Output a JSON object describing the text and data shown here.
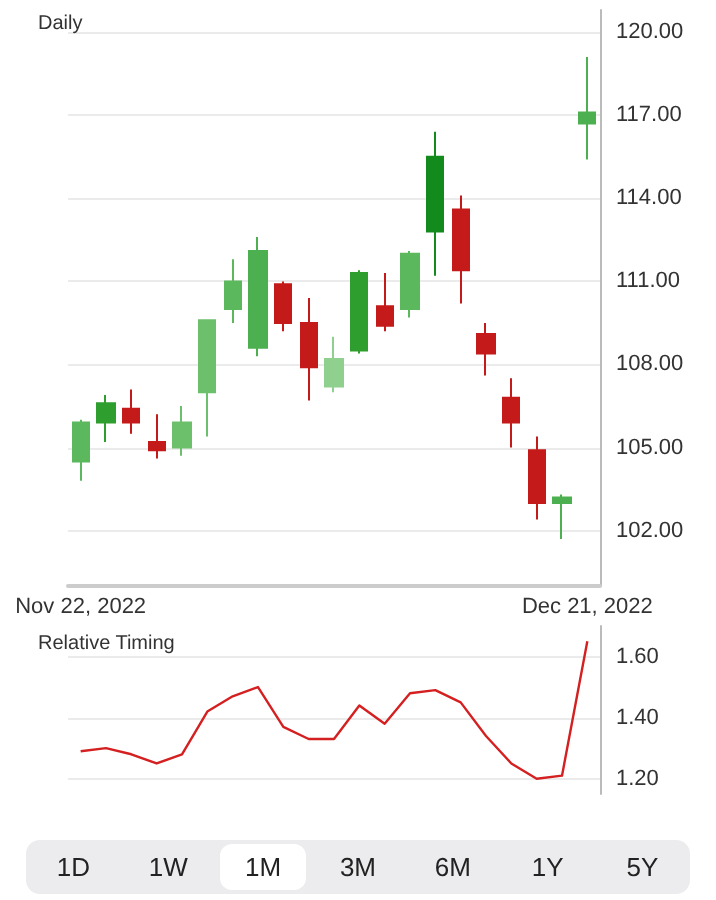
{
  "chart_data": [
    {
      "type": "candlestick",
      "title": "Daily",
      "categories": [
        "Nov 22, 2022",
        null,
        null,
        null,
        null,
        null,
        null,
        null,
        null,
        null,
        null,
        null,
        null,
        null,
        null,
        null,
        null,
        null,
        null,
        null,
        "Dec 21, 2022"
      ],
      "ohlc": [
        [
          104.5,
          106.0,
          103.8,
          105.9
        ],
        [
          105.9,
          106.9,
          105.2,
          106.6
        ],
        [
          106.4,
          107.1,
          105.5,
          105.9
        ],
        [
          105.2,
          106.2,
          104.6,
          104.9
        ],
        [
          105.0,
          106.5,
          104.7,
          105.9
        ],
        [
          107.0,
          109.6,
          105.4,
          109.6
        ],
        [
          110.0,
          111.8,
          109.5,
          111.0
        ],
        [
          108.6,
          112.6,
          108.3,
          112.1
        ],
        [
          110.9,
          111.0,
          109.2,
          109.5
        ],
        [
          109.5,
          110.4,
          106.7,
          107.9
        ],
        [
          107.2,
          109.0,
          107.0,
          108.2
        ],
        [
          108.5,
          111.4,
          108.4,
          111.3
        ],
        [
          110.1,
          111.3,
          109.2,
          109.4
        ],
        [
          110.0,
          112.1,
          109.7,
          112.0
        ],
        [
          112.8,
          116.4,
          111.2,
          115.5
        ],
        [
          113.6,
          114.1,
          110.2,
          111.4
        ],
        [
          109.1,
          109.5,
          107.6,
          108.4
        ],
        [
          106.8,
          107.5,
          105.0,
          105.9
        ],
        [
          104.9,
          105.4,
          102.4,
          103.0
        ],
        [
          103.0,
          103.3,
          101.7,
          103.2
        ],
        [
          116.7,
          119.1,
          115.4,
          117.1
        ]
      ],
      "colors": [
        "#5cb85c",
        "#2e9e2e",
        "#c41a1a",
        "#c41a1a",
        "#6cc06c",
        "#6cc06c",
        "#5cb85c",
        "#4caf50",
        "#c41a1a",
        "#c41a1a",
        "#8fd08f",
        "#2e9e2e",
        "#c41a1a",
        "#5cb85c",
        "#138a1c",
        "#c41a1a",
        "#c41a1a",
        "#c41a1a",
        "#c41a1a",
        "#4caf50",
        "#4caf50"
      ],
      "ylim": [
        100,
        120.8
      ],
      "yticks": [
        {
          "value": 102,
          "label": "102.00"
        },
        {
          "value": 105,
          "label": "105.00"
        },
        {
          "value": 108,
          "label": "108.00"
        },
        {
          "value": 111,
          "label": "111.00"
        },
        {
          "value": 114,
          "label": "114.00"
        },
        {
          "value": 117,
          "label": "117.00"
        },
        {
          "value": 120,
          "label": "120.00"
        }
      ],
      "grid": "y"
    },
    {
      "type": "line",
      "title": "Relative Timing",
      "categories": [
        null,
        null,
        null,
        null,
        null,
        null,
        null,
        null,
        null,
        null,
        null,
        null,
        null,
        null,
        null,
        null,
        null,
        null,
        null,
        null,
        null
      ],
      "series": [
        {
          "color": "#d42020",
          "values": [
            1.29,
            1.3,
            1.28,
            1.25,
            1.28,
            1.42,
            1.47,
            1.5,
            1.37,
            1.33,
            1.33,
            1.44,
            1.38,
            1.48,
            1.49,
            1.45,
            1.34,
            1.25,
            1.2,
            1.21,
            1.65
          ]
        }
      ],
      "ylim": [
        1.15,
        1.7
      ],
      "yticks": [
        {
          "value": 1.2,
          "label": "1.20"
        },
        {
          "value": 1.4,
          "label": "1.40"
        },
        {
          "value": 1.6,
          "label": "1.60"
        }
      ],
      "grid": "y",
      "tick_labels": "y",
      "marker": "none",
      "line_style": "solid"
    },
    {
      "type": "other",
      "annotations": [
        "1D",
        "1W",
        "1M",
        "3M",
        "6M",
        "1Y",
        "5Y"
      ]
    }
  ]
}
